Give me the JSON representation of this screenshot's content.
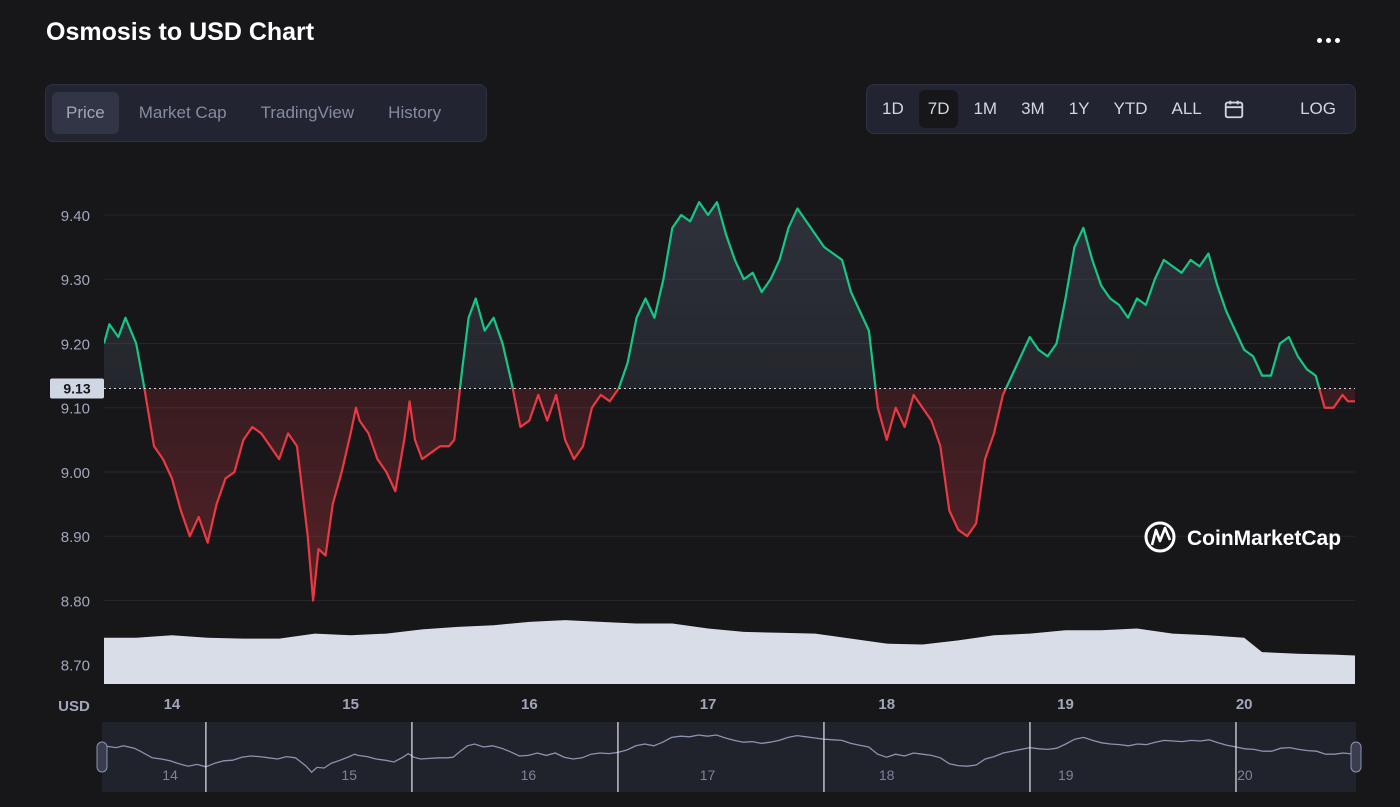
{
  "header": {
    "title": "Osmosis to USD Chart"
  },
  "tabs": [
    {
      "label": "Price",
      "active": true
    },
    {
      "label": "Market Cap",
      "active": false
    },
    {
      "label": "TradingView",
      "active": false
    },
    {
      "label": "History",
      "active": false
    }
  ],
  "ranges": [
    {
      "label": "1D",
      "active": false
    },
    {
      "label": "7D",
      "active": true
    },
    {
      "label": "1M",
      "active": false
    },
    {
      "label": "3M",
      "active": false
    },
    {
      "label": "1Y",
      "active": false
    },
    {
      "label": "YTD",
      "active": false
    },
    {
      "label": "ALL",
      "active": false
    }
  ],
  "log_label": "LOG",
  "icons": {
    "more": "more-dots-icon",
    "calendar": "calendar-icon",
    "watermark": "coinmarketcap-logo-icon"
  },
  "colors": {
    "up": "#16c784",
    "down": "#ea3943",
    "volume": "#d8dde8",
    "background": "#17171a",
    "navigator_line": "#8b93b0"
  },
  "watermark_text": "CoinMarketCap",
  "chart_data": {
    "type": "line",
    "title": "Osmosis to USD Chart",
    "currency_label": "USD",
    "y_ticks": [
      "9.40",
      "9.30",
      "9.20",
      "9.10",
      "9.00",
      "8.90",
      "8.80",
      "8.70"
    ],
    "x_ticks": [
      "14",
      "15",
      "16",
      "17",
      "18",
      "19",
      "20"
    ],
    "ylim": [
      8.67,
      9.47
    ],
    "xlim": [
      13.62,
      20.62
    ],
    "reference_price": 9.13,
    "reference_label": "9.13",
    "grid": true,
    "series": [
      {
        "values": [
          [
            13.62,
            9.2
          ],
          [
            13.65,
            9.23
          ],
          [
            13.7,
            9.21
          ],
          [
            13.74,
            9.24
          ],
          [
            13.8,
            9.2
          ],
          [
            13.84,
            9.14
          ],
          [
            13.9,
            9.04
          ],
          [
            13.95,
            9.02
          ],
          [
            14.0,
            8.99
          ],
          [
            14.05,
            8.94
          ],
          [
            14.1,
            8.9
          ],
          [
            14.15,
            8.93
          ],
          [
            14.2,
            8.89
          ],
          [
            14.25,
            8.95
          ],
          [
            14.3,
            8.99
          ],
          [
            14.35,
            9.0
          ],
          [
            14.4,
            9.05
          ],
          [
            14.45,
            9.07
          ],
          [
            14.5,
            9.06
          ],
          [
            14.55,
            9.04
          ],
          [
            14.6,
            9.02
          ],
          [
            14.65,
            9.06
          ],
          [
            14.7,
            9.04
          ],
          [
            14.73,
            8.97
          ],
          [
            14.76,
            8.9
          ],
          [
            14.79,
            8.8
          ],
          [
            14.82,
            8.88
          ],
          [
            14.86,
            8.87
          ],
          [
            14.9,
            8.95
          ],
          [
            14.95,
            9.0
          ],
          [
            15.0,
            9.06
          ],
          [
            15.03,
            9.1
          ],
          [
            15.05,
            9.08
          ],
          [
            15.1,
            9.06
          ],
          [
            15.15,
            9.02
          ],
          [
            15.2,
            9.0
          ],
          [
            15.25,
            8.97
          ],
          [
            15.3,
            9.05
          ],
          [
            15.33,
            9.11
          ],
          [
            15.36,
            9.05
          ],
          [
            15.4,
            9.02
          ],
          [
            15.45,
            9.03
          ],
          [
            15.5,
            9.04
          ],
          [
            15.55,
            9.04
          ],
          [
            15.58,
            9.05
          ],
          [
            15.62,
            9.15
          ],
          [
            15.66,
            9.24
          ],
          [
            15.7,
            9.27
          ],
          [
            15.75,
            9.22
          ],
          [
            15.8,
            9.24
          ],
          [
            15.85,
            9.2
          ],
          [
            15.9,
            9.14
          ],
          [
            15.95,
            9.07
          ],
          [
            16.0,
            9.08
          ],
          [
            16.05,
            9.12
          ],
          [
            16.1,
            9.08
          ],
          [
            16.15,
            9.12
          ],
          [
            16.2,
            9.05
          ],
          [
            16.25,
            9.02
          ],
          [
            16.3,
            9.04
          ],
          [
            16.35,
            9.1
          ],
          [
            16.4,
            9.12
          ],
          [
            16.45,
            9.11
          ],
          [
            16.5,
            9.13
          ],
          [
            16.55,
            9.17
          ],
          [
            16.6,
            9.24
          ],
          [
            16.65,
            9.27
          ],
          [
            16.7,
            9.24
          ],
          [
            16.75,
            9.3
          ],
          [
            16.8,
            9.38
          ],
          [
            16.85,
            9.4
          ],
          [
            16.9,
            9.39
          ],
          [
            16.95,
            9.42
          ],
          [
            17.0,
            9.4
          ],
          [
            17.05,
            9.42
          ],
          [
            17.1,
            9.37
          ],
          [
            17.15,
            9.33
          ],
          [
            17.2,
            9.3
          ],
          [
            17.25,
            9.31
          ],
          [
            17.3,
            9.28
          ],
          [
            17.35,
            9.3
          ],
          [
            17.4,
            9.33
          ],
          [
            17.45,
            9.38
          ],
          [
            17.5,
            9.41
          ],
          [
            17.55,
            9.39
          ],
          [
            17.6,
            9.37
          ],
          [
            17.65,
            9.35
          ],
          [
            17.7,
            9.34
          ],
          [
            17.75,
            9.33
          ],
          [
            17.8,
            9.28
          ],
          [
            17.85,
            9.25
          ],
          [
            17.9,
            9.22
          ],
          [
            17.95,
            9.1
          ],
          [
            18.0,
            9.05
          ],
          [
            18.05,
            9.1
          ],
          [
            18.1,
            9.07
          ],
          [
            18.15,
            9.12
          ],
          [
            18.2,
            9.1
          ],
          [
            18.25,
            9.08
          ],
          [
            18.3,
            9.04
          ],
          [
            18.35,
            8.94
          ],
          [
            18.4,
            8.91
          ],
          [
            18.45,
            8.9
          ],
          [
            18.5,
            8.92
          ],
          [
            18.55,
            9.02
          ],
          [
            18.6,
            9.06
          ],
          [
            18.65,
            9.12
          ],
          [
            18.7,
            9.15
          ],
          [
            18.75,
            9.18
          ],
          [
            18.8,
            9.21
          ],
          [
            18.85,
            9.19
          ],
          [
            18.9,
            9.18
          ],
          [
            18.95,
            9.2
          ],
          [
            19.0,
            9.27
          ],
          [
            19.05,
            9.35
          ],
          [
            19.1,
            9.38
          ],
          [
            19.15,
            9.33
          ],
          [
            19.2,
            9.29
          ],
          [
            19.25,
            9.27
          ],
          [
            19.3,
            9.26
          ],
          [
            19.35,
            9.24
          ],
          [
            19.4,
            9.27
          ],
          [
            19.45,
            9.26
          ],
          [
            19.5,
            9.3
          ],
          [
            19.55,
            9.33
          ],
          [
            19.6,
            9.32
          ],
          [
            19.65,
            9.31
          ],
          [
            19.7,
            9.33
          ],
          [
            19.75,
            9.32
          ],
          [
            19.8,
            9.34
          ],
          [
            19.85,
            9.29
          ],
          [
            19.9,
            9.25
          ],
          [
            19.95,
            9.22
          ],
          [
            20.0,
            9.19
          ],
          [
            20.05,
            9.18
          ],
          [
            20.1,
            9.15
          ],
          [
            20.15,
            9.15
          ],
          [
            20.2,
            9.2
          ],
          [
            20.25,
            9.21
          ],
          [
            20.3,
            9.18
          ],
          [
            20.35,
            9.16
          ],
          [
            20.4,
            9.15
          ],
          [
            20.45,
            9.1
          ],
          [
            20.5,
            9.1
          ],
          [
            20.55,
            9.12
          ],
          [
            20.58,
            9.11
          ],
          [
            20.62,
            9.11
          ]
        ]
      }
    ],
    "volume": [
      [
        13.62,
        0.55
      ],
      [
        13.8,
        0.55
      ],
      [
        14.0,
        0.58
      ],
      [
        14.2,
        0.55
      ],
      [
        14.4,
        0.54
      ],
      [
        14.6,
        0.54
      ],
      [
        14.8,
        0.6
      ],
      [
        15.0,
        0.58
      ],
      [
        15.2,
        0.6
      ],
      [
        15.4,
        0.65
      ],
      [
        15.6,
        0.68
      ],
      [
        15.8,
        0.7
      ],
      [
        16.0,
        0.74
      ],
      [
        16.2,
        0.76
      ],
      [
        16.4,
        0.74
      ],
      [
        16.6,
        0.72
      ],
      [
        16.8,
        0.72
      ],
      [
        17.0,
        0.66
      ],
      [
        17.2,
        0.62
      ],
      [
        17.4,
        0.61
      ],
      [
        17.6,
        0.6
      ],
      [
        17.8,
        0.54
      ],
      [
        18.0,
        0.48
      ],
      [
        18.2,
        0.47
      ],
      [
        18.4,
        0.52
      ],
      [
        18.6,
        0.58
      ],
      [
        18.8,
        0.6
      ],
      [
        19.0,
        0.64
      ],
      [
        19.2,
        0.64
      ],
      [
        19.4,
        0.66
      ],
      [
        19.6,
        0.6
      ],
      [
        19.8,
        0.58
      ],
      [
        20.0,
        0.55
      ],
      [
        20.1,
        0.38
      ],
      [
        20.3,
        0.36
      ],
      [
        20.5,
        0.35
      ],
      [
        20.62,
        0.34
      ]
    ]
  }
}
